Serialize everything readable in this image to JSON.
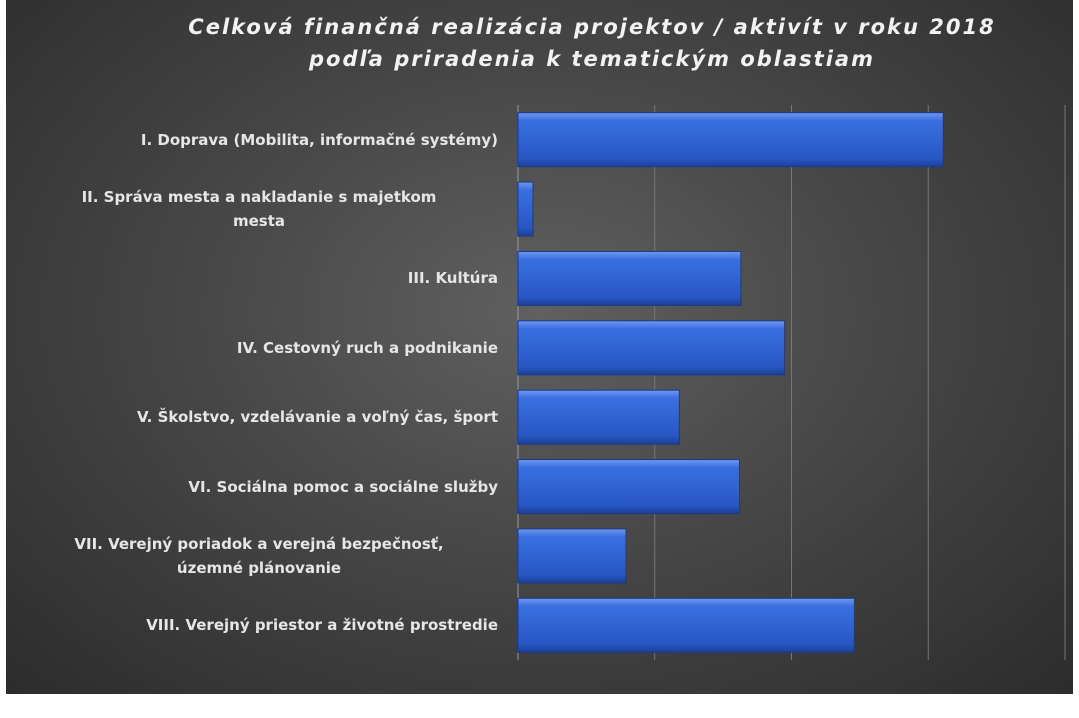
{
  "chart_data": {
    "type": "barh",
    "title": [
      "Celková finančná realizácia projektov / aktivít v roku 2018",
      "podľa priradenia k tematickým oblastiam"
    ],
    "categories": [
      "I. Doprava (Mobilita, informačné systémy)",
      "II. Správa mesta a nakladanie s majetkom\nmesta",
      "III. Kultúra",
      "IV. Cestovný ruch a podnikanie",
      "V. Školstvo, vzdelávanie a voľný čas, šport",
      "VI. Sociálna pomoc a sociálne služby",
      "VII. Verejný poriadok a verejná bezpečnosť,\núzemné plánovanie",
      "VIII. Verejný priestor a životné prostredie"
    ],
    "values": [
      3.11,
      0.11,
      1.63,
      1.95,
      1.18,
      1.62,
      0.79,
      2.46
    ],
    "color": "#2f63d9",
    "xlim": [
      0,
      4
    ],
    "xticks": [
      0,
      1,
      2,
      3,
      4
    ],
    "grid": true
  }
}
